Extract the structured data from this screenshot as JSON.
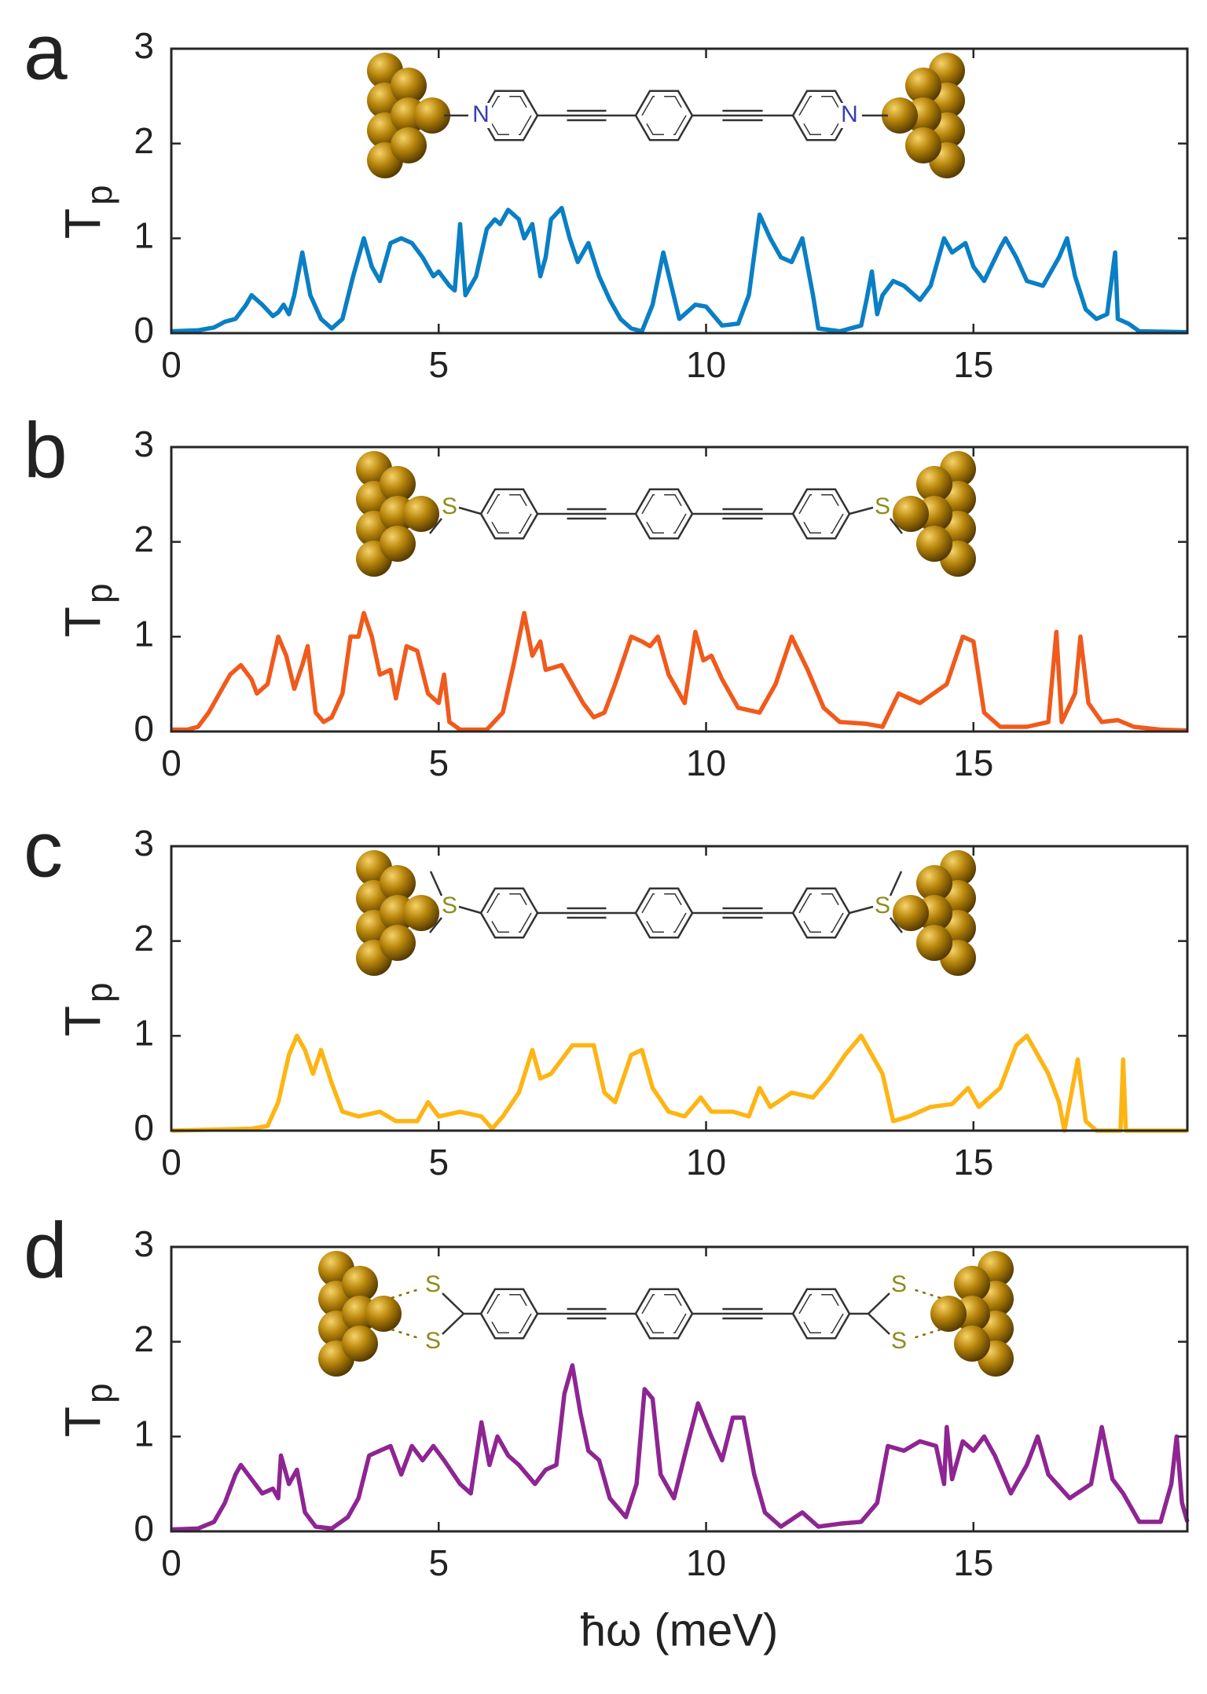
{
  "chart_data": [
    {
      "type": "line",
      "panel": "a",
      "ylabel": "T",
      "ylabel_sub": "p",
      "xlim": [
        0,
        19
      ],
      "ylim": [
        0,
        3
      ],
      "xticks": [
        0,
        5,
        10,
        15
      ],
      "yticks": [
        0,
        1,
        2,
        3
      ],
      "annotations": [
        "N",
        "N"
      ],
      "annotation_color": "#3b3bb5",
      "x": [
        0,
        0.5,
        0.8,
        1.0,
        1.2,
        1.4,
        1.5,
        1.7,
        1.9,
        2.0,
        2.1,
        2.2,
        2.3,
        2.45,
        2.6,
        2.8,
        3.0,
        3.2,
        3.4,
        3.6,
        3.75,
        3.9,
        4.1,
        4.3,
        4.5,
        4.7,
        4.9,
        5.0,
        5.2,
        5.3,
        5.4,
        5.5,
        5.7,
        5.9,
        6.05,
        6.15,
        6.3,
        6.5,
        6.6,
        6.75,
        6.9,
        7.0,
        7.1,
        7.3,
        7.45,
        7.6,
        7.8,
        8.0,
        8.2,
        8.4,
        8.6,
        8.8,
        9.0,
        9.2,
        9.35,
        9.5,
        9.8,
        10.0,
        10.3,
        10.6,
        10.8,
        11.0,
        11.2,
        11.4,
        11.6,
        11.8,
        12.0,
        12.1,
        12.5,
        12.9,
        13.0,
        13.1,
        13.2,
        13.3,
        13.5,
        13.7,
        14.0,
        14.2,
        14.45,
        14.6,
        14.85,
        15.0,
        15.2,
        15.5,
        15.6,
        15.8,
        16.0,
        16.3,
        16.6,
        16.75,
        16.9,
        17.1,
        17.3,
        17.5,
        17.65,
        17.7,
        17.9,
        18.1,
        19.0
      ],
      "series": [
        {
          "color": "#0a7fc4",
          "values": [
            0.02,
            0.03,
            0.06,
            0.12,
            0.15,
            0.3,
            0.4,
            0.3,
            0.18,
            0.22,
            0.3,
            0.2,
            0.4,
            0.85,
            0.4,
            0.15,
            0.05,
            0.15,
            0.6,
            1.0,
            0.7,
            0.55,
            0.95,
            1.0,
            0.95,
            0.8,
            0.6,
            0.65,
            0.5,
            0.45,
            1.15,
            0.4,
            0.6,
            1.1,
            1.2,
            1.15,
            1.3,
            1.2,
            1.0,
            1.15,
            0.6,
            0.8,
            1.2,
            1.32,
            1.0,
            0.75,
            0.95,
            0.6,
            0.35,
            0.15,
            0.05,
            0.02,
            0.3,
            0.85,
            0.5,
            0.15,
            0.3,
            0.28,
            0.08,
            0.1,
            0.4,
            1.25,
            1.0,
            0.8,
            0.75,
            1.0,
            0.4,
            0.05,
            0.02,
            0.08,
            0.35,
            0.65,
            0.2,
            0.4,
            0.55,
            0.5,
            0.35,
            0.5,
            1.0,
            0.85,
            0.95,
            0.7,
            0.55,
            0.9,
            1.0,
            0.8,
            0.55,
            0.5,
            0.8,
            1.0,
            0.6,
            0.25,
            0.15,
            0.2,
            0.85,
            0.15,
            0.1,
            0.02,
            0.01
          ]
        }
      ]
    },
    {
      "type": "line",
      "panel": "b",
      "ylabel": "T",
      "ylabel_sub": "p",
      "xlim": [
        0,
        19
      ],
      "ylim": [
        0,
        3
      ],
      "xticks": [
        0,
        5,
        10,
        15
      ],
      "yticks": [
        0,
        1,
        2,
        3
      ],
      "annotations": [
        "S",
        "S"
      ],
      "annotation_color": "#8c8c1e",
      "x": [
        0,
        0.3,
        0.5,
        0.7,
        0.9,
        1.1,
        1.3,
        1.5,
        1.6,
        1.8,
        2.0,
        2.15,
        2.3,
        2.45,
        2.55,
        2.7,
        2.85,
        3.0,
        3.2,
        3.35,
        3.5,
        3.6,
        3.75,
        3.9,
        4.1,
        4.2,
        4.4,
        4.6,
        4.8,
        5.0,
        5.1,
        5.2,
        5.4,
        5.9,
        6.2,
        6.4,
        6.6,
        6.75,
        6.9,
        7.0,
        7.3,
        7.5,
        7.7,
        7.9,
        8.1,
        8.3,
        8.6,
        8.8,
        8.95,
        9.1,
        9.3,
        9.6,
        9.8,
        9.95,
        10.1,
        10.3,
        10.6,
        11.0,
        11.3,
        11.6,
        11.9,
        12.2,
        12.5,
        13.0,
        13.3,
        13.6,
        14.0,
        14.5,
        14.8,
        15.0,
        15.2,
        15.5,
        16.0,
        16.4,
        16.55,
        16.65,
        16.9,
        17.0,
        17.15,
        17.4,
        17.7,
        18.0,
        18.5,
        19.0
      ],
      "series": [
        {
          "color": "#f05a1c",
          "values": [
            0.02,
            0.02,
            0.05,
            0.2,
            0.4,
            0.6,
            0.7,
            0.55,
            0.4,
            0.5,
            1.0,
            0.8,
            0.45,
            0.7,
            0.9,
            0.2,
            0.1,
            0.15,
            0.4,
            1.0,
            1.0,
            1.25,
            1.0,
            0.6,
            0.65,
            0.35,
            0.9,
            0.85,
            0.4,
            0.3,
            0.6,
            0.1,
            0.02,
            0.02,
            0.2,
            0.7,
            1.25,
            0.8,
            0.95,
            0.65,
            0.7,
            0.5,
            0.3,
            0.15,
            0.2,
            0.5,
            1.0,
            0.95,
            0.9,
            1.0,
            0.6,
            0.3,
            1.05,
            0.75,
            0.8,
            0.55,
            0.25,
            0.2,
            0.5,
            1.0,
            0.65,
            0.25,
            0.1,
            0.08,
            0.05,
            0.4,
            0.3,
            0.5,
            1.0,
            0.95,
            0.2,
            0.05,
            0.05,
            0.1,
            1.05,
            0.1,
            0.4,
            1.0,
            0.3,
            0.1,
            0.12,
            0.05,
            0.02,
            0.01
          ]
        }
      ]
    },
    {
      "type": "line",
      "panel": "c",
      "ylabel": "T",
      "ylabel_sub": "p",
      "xlim": [
        0,
        19
      ],
      "ylim": [
        0,
        3
      ],
      "xticks": [
        0,
        5,
        10,
        15
      ],
      "yticks": [
        0,
        1,
        2,
        3
      ],
      "annotations": [
        "S",
        "S"
      ],
      "annotation_color": "#8c8c1e",
      "x": [
        0,
        1.5,
        1.8,
        2.0,
        2.2,
        2.35,
        2.5,
        2.65,
        2.8,
        3.0,
        3.2,
        3.5,
        3.9,
        4.2,
        4.6,
        4.8,
        5.0,
        5.4,
        5.8,
        6.0,
        6.2,
        6.5,
        6.75,
        6.9,
        7.1,
        7.3,
        7.5,
        7.7,
        7.9,
        8.1,
        8.3,
        8.6,
        8.8,
        9.0,
        9.3,
        9.6,
        9.9,
        10.1,
        10.5,
        10.8,
        11.0,
        11.2,
        11.6,
        12.0,
        12.3,
        12.6,
        12.9,
        13.1,
        13.3,
        13.5,
        13.8,
        14.2,
        14.6,
        14.9,
        15.1,
        15.5,
        15.8,
        16.0,
        16.2,
        16.4,
        16.6,
        16.7,
        16.85,
        16.95,
        17.1,
        17.3,
        17.75,
        17.8,
        17.85,
        19
      ],
      "series": [
        {
          "color": "#fdb515",
          "values": [
            0,
            0.02,
            0.05,
            0.3,
            0.8,
            1.0,
            0.85,
            0.6,
            0.85,
            0.5,
            0.2,
            0.15,
            0.2,
            0.1,
            0.1,
            0.3,
            0.15,
            0.2,
            0.15,
            0.02,
            0.15,
            0.4,
            0.85,
            0.55,
            0.6,
            0.75,
            0.9,
            0.9,
            0.9,
            0.4,
            0.3,
            0.8,
            0.85,
            0.45,
            0.2,
            0.15,
            0.35,
            0.2,
            0.2,
            0.15,
            0.45,
            0.25,
            0.4,
            0.35,
            0.55,
            0.8,
            1.0,
            0.8,
            0.6,
            0.1,
            0.15,
            0.25,
            0.28,
            0.45,
            0.25,
            0.45,
            0.9,
            1.0,
            0.8,
            0.6,
            0.3,
            0,
            0.45,
            0.75,
            0.1,
            0,
            0,
            0.75,
            0,
            0
          ]
        }
      ]
    },
    {
      "type": "line",
      "panel": "d",
      "ylabel": "T",
      "ylabel_sub": "p",
      "xlabel": "ħω (meV)",
      "xlim": [
        0,
        19
      ],
      "ylim": [
        0,
        3
      ],
      "xticks": [
        0,
        5,
        10,
        15
      ],
      "yticks": [
        0,
        1,
        2,
        3
      ],
      "annotations": [
        "S",
        "S",
        "S",
        "S"
      ],
      "annotation_color": "#8c8c1e",
      "x": [
        0,
        0.5,
        0.8,
        1.0,
        1.2,
        1.3,
        1.5,
        1.7,
        1.9,
        2.0,
        2.05,
        2.2,
        2.35,
        2.5,
        2.7,
        3.0,
        3.3,
        3.5,
        3.7,
        3.9,
        4.1,
        4.3,
        4.5,
        4.7,
        4.9,
        5.1,
        5.4,
        5.6,
        5.8,
        5.95,
        6.1,
        6.3,
        6.5,
        6.8,
        7.0,
        7.2,
        7.35,
        7.5,
        7.65,
        7.8,
        8.0,
        8.2,
        8.5,
        8.7,
        8.85,
        9.0,
        9.15,
        9.4,
        9.6,
        9.85,
        10.1,
        10.3,
        10.5,
        10.7,
        10.9,
        11.1,
        11.4,
        11.8,
        12.1,
        12.5,
        12.9,
        13.2,
        13.4,
        13.7,
        14.0,
        14.3,
        14.45,
        14.5,
        14.6,
        14.8,
        15.0,
        15.2,
        15.4,
        15.7,
        16.0,
        16.2,
        16.4,
        16.8,
        17.2,
        17.4,
        17.6,
        17.8,
        18.1,
        18.5,
        18.7,
        18.8,
        18.9,
        19.0
      ],
      "series": [
        {
          "color": "#8e2592",
          "values": [
            0.02,
            0.03,
            0.1,
            0.3,
            0.6,
            0.7,
            0.55,
            0.4,
            0.45,
            0.35,
            0.8,
            0.5,
            0.65,
            0.2,
            0.05,
            0.03,
            0.15,
            0.35,
            0.8,
            0.85,
            0.9,
            0.6,
            0.9,
            0.75,
            0.9,
            0.75,
            0.5,
            0.4,
            1.15,
            0.7,
            1.0,
            0.8,
            0.7,
            0.5,
            0.65,
            0.7,
            1.45,
            1.75,
            1.25,
            0.85,
            0.75,
            0.35,
            0.15,
            0.5,
            1.5,
            1.4,
            0.6,
            0.35,
            0.8,
            1.35,
            1.0,
            0.75,
            1.2,
            1.2,
            0.6,
            0.2,
            0.05,
            0.2,
            0.05,
            0.08,
            0.1,
            0.3,
            0.9,
            0.85,
            0.95,
            0.9,
            0.5,
            1.1,
            0.55,
            0.95,
            0.85,
            1.0,
            0.8,
            0.4,
            0.7,
            1.0,
            0.6,
            0.35,
            0.5,
            1.1,
            0.55,
            0.4,
            0.1,
            0.1,
            0.5,
            1.0,
            0.3,
            0.1
          ]
        }
      ]
    }
  ]
}
